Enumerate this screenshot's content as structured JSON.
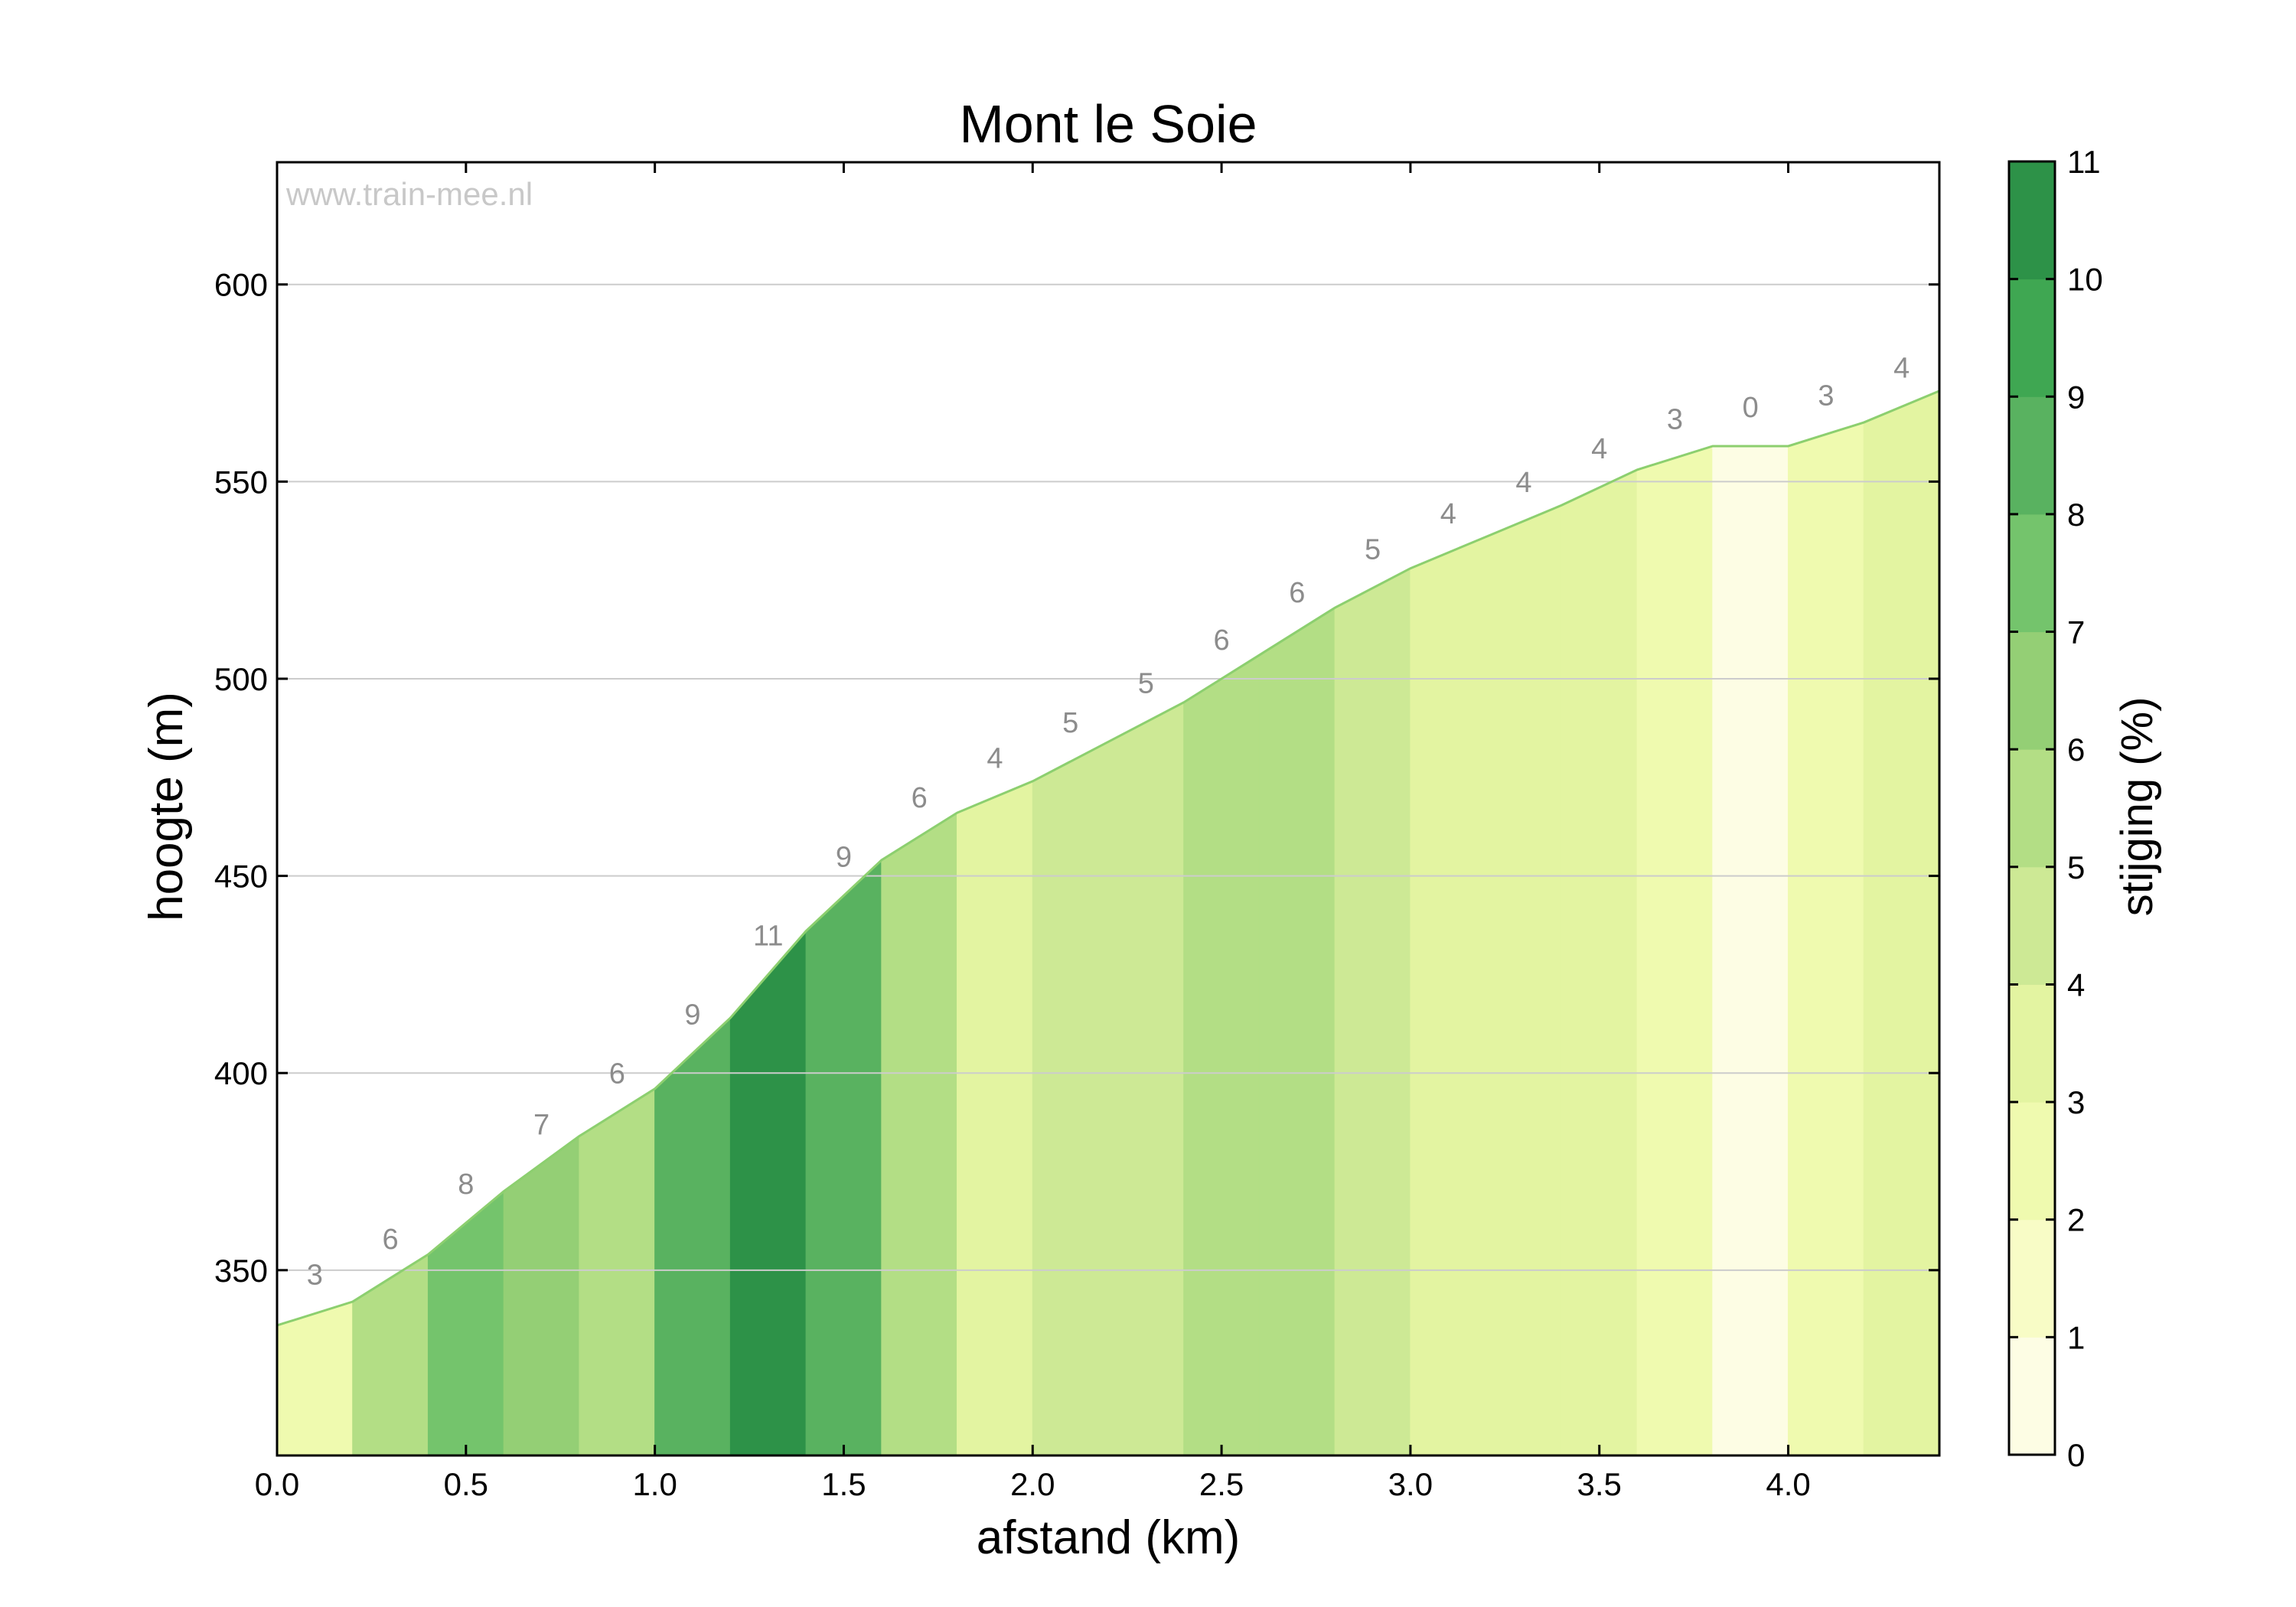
{
  "chart_data": {
    "type": "area",
    "title": "Mont le Soie",
    "watermark": "www.train-mee.nl",
    "xlabel": "afstand (km)",
    "ylabel": "hoogte (m)",
    "colorbar_label": "stijging (%)",
    "xlim": [
      0,
      4.4
    ],
    "ylim": [
      303,
      631
    ],
    "x_ticks": [
      "0.0",
      "0.5",
      "1.0",
      "1.5",
      "2.0",
      "2.5",
      "3.0",
      "3.5",
      "4.0"
    ],
    "y_ticks": [
      "350",
      "400",
      "450",
      "500",
      "550",
      "600"
    ],
    "colorbar_ticks": [
      "0",
      "1",
      "2",
      "3",
      "4",
      "5",
      "6",
      "7",
      "8",
      "9",
      "10",
      "11"
    ],
    "grid": true,
    "segments": [
      {
        "x0": 0.0,
        "x1": 0.2,
        "y0": 336,
        "y1": 342,
        "gradient": "3",
        "grad": 3
      },
      {
        "x0": 0.2,
        "x1": 0.4,
        "y0": 342,
        "y1": 354,
        "gradient": "6",
        "grad": 6
      },
      {
        "x0": 0.4,
        "x1": 0.6,
        "y0": 354,
        "y1": 370,
        "gradient": "8",
        "grad": 8
      },
      {
        "x0": 0.6,
        "x1": 0.8,
        "y0": 370,
        "y1": 384,
        "gradient": "7",
        "grad": 7
      },
      {
        "x0": 0.8,
        "x1": 1.0,
        "y0": 384,
        "y1": 396,
        "gradient": "6",
        "grad": 6
      },
      {
        "x0": 1.0,
        "x1": 1.2,
        "y0": 396,
        "y1": 414,
        "gradient": "9",
        "grad": 9
      },
      {
        "x0": 1.2,
        "x1": 1.4,
        "y0": 414,
        "y1": 436,
        "gradient": "11",
        "grad": 11
      },
      {
        "x0": 1.4,
        "x1": 1.6,
        "y0": 436,
        "y1": 454,
        "gradient": "9",
        "grad": 9
      },
      {
        "x0": 1.6,
        "x1": 1.8,
        "y0": 454,
        "y1": 466,
        "gradient": "6",
        "grad": 6
      },
      {
        "x0": 1.8,
        "x1": 2.0,
        "y0": 466,
        "y1": 474,
        "gradient": "4",
        "grad": 4
      },
      {
        "x0": 2.0,
        "x1": 2.2,
        "y0": 474,
        "y1": 484,
        "gradient": "5",
        "grad": 5
      },
      {
        "x0": 2.2,
        "x1": 2.4,
        "y0": 484,
        "y1": 494,
        "gradient": "5",
        "grad": 5
      },
      {
        "x0": 2.4,
        "x1": 2.6,
        "y0": 494,
        "y1": 506,
        "gradient": "6",
        "grad": 6
      },
      {
        "x0": 2.6,
        "x1": 2.8,
        "y0": 506,
        "y1": 518,
        "gradient": "6",
        "grad": 6
      },
      {
        "x0": 2.8,
        "x1": 3.0,
        "y0": 518,
        "y1": 528,
        "gradient": "5",
        "grad": 5
      },
      {
        "x0": 3.0,
        "x1": 3.2,
        "y0": 528,
        "y1": 536,
        "gradient": "4",
        "grad": 4
      },
      {
        "x0": 3.2,
        "x1": 3.4,
        "y0": 536,
        "y1": 544,
        "gradient": "4",
        "grad": 4
      },
      {
        "x0": 3.4,
        "x1": 3.6,
        "y0": 544,
        "y1": 553,
        "gradient": "4",
        "grad": 4
      },
      {
        "x0": 3.6,
        "x1": 3.8,
        "y0": 553,
        "y1": 559,
        "gradient": "3",
        "grad": 3
      },
      {
        "x0": 3.8,
        "x1": 4.0,
        "y0": 559,
        "y1": 559,
        "gradient": "0",
        "grad": 0
      },
      {
        "x0": 4.0,
        "x1": 4.2,
        "y0": 559,
        "y1": 565,
        "gradient": "3",
        "grad": 3
      },
      {
        "x0": 4.2,
        "x1": 4.4,
        "y0": 565,
        "y1": 573,
        "gradient": "4",
        "grad": 4
      }
    ],
    "colormap": [
      "#fdfde4",
      "#f8fcc6",
      "#effaaf",
      "#e3f4a1",
      "#cde995",
      "#b3de85",
      "#94cf75",
      "#74c46c",
      "#59b260",
      "#3fa752",
      "#2d9248"
    ],
    "colors": {
      "profile_line": "#8ccf6f",
      "gridline": "#cccccc",
      "gradient_label": "#8c8c8c",
      "watermark": "#c8c8c8",
      "axis": "#000000"
    }
  }
}
